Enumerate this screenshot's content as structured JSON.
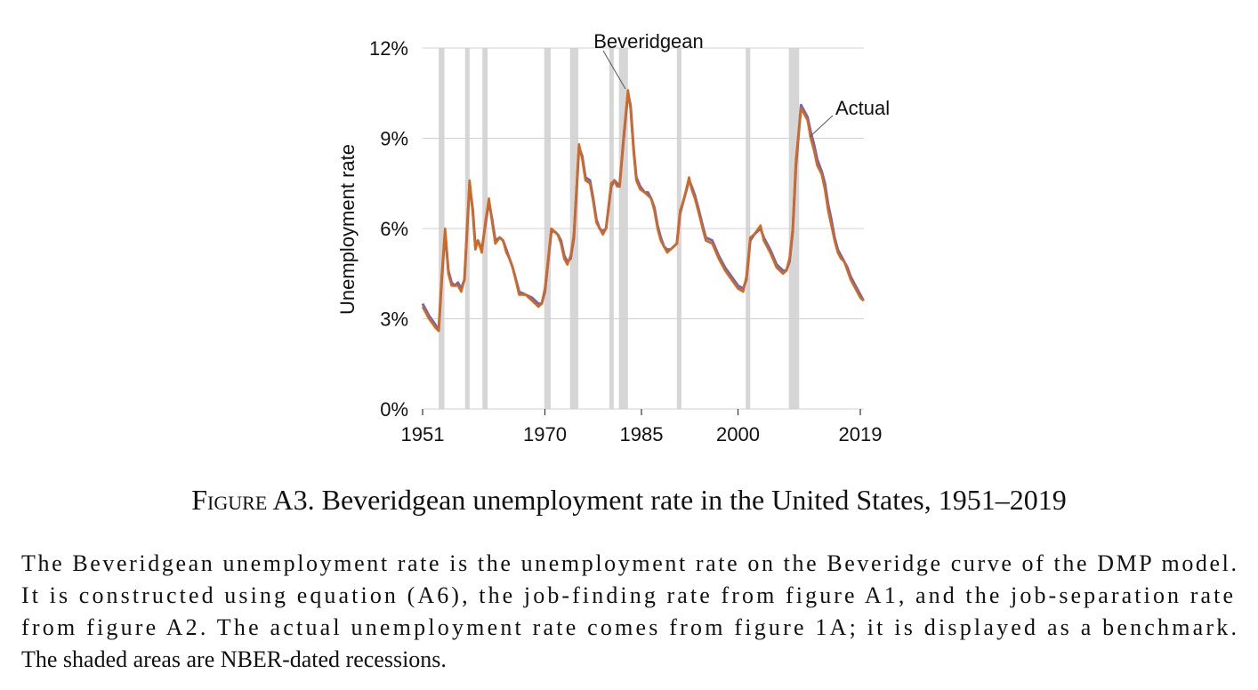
{
  "chart_data": {
    "type": "line",
    "y_label": "Unemployment rate",
    "x": [
      1951.0,
      1951.5,
      1952.0,
      1953.0,
      1953.5,
      1954.0,
      1954.5,
      1955.0,
      1955.5,
      1956.0,
      1956.5,
      1957.0,
      1957.5,
      1958.3,
      1958.8,
      1959.2,
      1959.6,
      1960.2,
      1960.8,
      1961.3,
      1961.8,
      1962.3,
      1963.0,
      1963.5,
      1964.0,
      1964.5,
      1965.0,
      1966.0,
      1967.0,
      1968.0,
      1969.0,
      1969.5,
      1970.0,
      1970.5,
      1971.0,
      1971.5,
      1972.0,
      1972.5,
      1973.0,
      1973.5,
      1974.0,
      1974.5,
      1975.3,
      1975.8,
      1976.3,
      1977.0,
      1977.5,
      1978.0,
      1978.5,
      1979.0,
      1979.5,
      1980.3,
      1980.8,
      1981.2,
      1981.6,
      1982.2,
      1982.9,
      1983.3,
      1983.8,
      1984.2,
      1984.8,
      1985.5,
      1986.0,
      1986.5,
      1987.0,
      1987.5,
      1988.0,
      1988.5,
      1989.0,
      1989.5,
      1990.0,
      1990.5,
      1991.0,
      1991.5,
      1992.4,
      1992.8,
      1993.3,
      1993.8,
      1994.5,
      1995.0,
      1996.0,
      1997.0,
      1998.0,
      1999.0,
      2000.0,
      2000.8,
      2001.3,
      2001.9,
      2002.5,
      2003.5,
      2004.0,
      2005.0,
      2006.0,
      2007.0,
      2007.5,
      2008.0,
      2008.5,
      2009.0,
      2009.8,
      2010.3,
      2010.8,
      2011.3,
      2011.8,
      2012.3,
      2013.0,
      2013.5,
      2014.0,
      2014.5,
      2015.0,
      2015.5,
      2016.0,
      2016.5,
      2017.0,
      2017.5,
      2018.0,
      2018.5,
      2019.0,
      2019.5
    ],
    "series": [
      {
        "name": "Beveridgean",
        "color": "#7466b0",
        "values": [
          3.5,
          3.3,
          3.1,
          2.8,
          2.6,
          4.4,
          5.9,
          4.6,
          4.2,
          4.1,
          4.2,
          4.0,
          4.3,
          7.5,
          6.6,
          5.4,
          5.6,
          5.3,
          6.2,
          6.9,
          6.3,
          5.6,
          5.7,
          5.6,
          5.3,
          5.0,
          4.7,
          3.9,
          3.8,
          3.7,
          3.5,
          3.5,
          3.9,
          4.9,
          5.9,
          5.9,
          5.8,
          5.6,
          5.1,
          4.9,
          5.0,
          5.7,
          8.7,
          8.4,
          7.7,
          7.6,
          7.0,
          6.3,
          6.0,
          5.9,
          6.0,
          7.4,
          7.6,
          7.5,
          7.4,
          8.9,
          10.5,
          10.1,
          8.6,
          7.7,
          7.4,
          7.2,
          7.2,
          7.0,
          6.7,
          6.1,
          5.7,
          5.4,
          5.3,
          5.3,
          5.4,
          5.5,
          6.5,
          6.9,
          7.6,
          7.4,
          7.1,
          6.7,
          6.1,
          5.7,
          5.6,
          5.1,
          4.7,
          4.4,
          4.1,
          4.0,
          4.3,
          5.6,
          5.8,
          6.0,
          5.7,
          5.3,
          4.8,
          4.6,
          4.6,
          4.9,
          5.9,
          8.1,
          10.1,
          9.9,
          9.7,
          9.2,
          8.8,
          8.3,
          7.9,
          7.5,
          6.8,
          6.3,
          5.7,
          5.3,
          5.1,
          4.9,
          4.7,
          4.4,
          4.2,
          4.0,
          3.8,
          3.6
        ]
      },
      {
        "name": "Actual",
        "color": "#d2691e",
        "values": [
          3.4,
          3.2,
          3.0,
          2.7,
          2.6,
          4.5,
          6.0,
          4.5,
          4.1,
          4.1,
          4.1,
          3.9,
          4.3,
          7.6,
          6.5,
          5.3,
          5.6,
          5.2,
          6.3,
          7.0,
          6.2,
          5.5,
          5.7,
          5.6,
          5.2,
          5.0,
          4.7,
          3.8,
          3.8,
          3.6,
          3.4,
          3.5,
          4.0,
          5.0,
          6.0,
          5.9,
          5.8,
          5.5,
          5.0,
          4.8,
          5.1,
          5.8,
          8.8,
          8.3,
          7.6,
          7.5,
          6.9,
          6.2,
          6.0,
          5.8,
          6.0,
          7.5,
          7.6,
          7.4,
          7.4,
          9.0,
          10.6,
          10.0,
          8.5,
          7.6,
          7.3,
          7.2,
          7.1,
          7.0,
          6.6,
          6.0,
          5.6,
          5.4,
          5.2,
          5.3,
          5.4,
          5.5,
          6.6,
          6.9,
          7.7,
          7.3,
          7.0,
          6.6,
          6.0,
          5.6,
          5.5,
          5.0,
          4.6,
          4.3,
          4.0,
          3.9,
          4.4,
          5.7,
          5.8,
          6.1,
          5.6,
          5.2,
          4.7,
          4.5,
          4.6,
          5.0,
          6.0,
          8.3,
          10.0,
          9.8,
          9.6,
          9.0,
          8.6,
          8.1,
          7.8,
          7.3,
          6.6,
          6.1,
          5.6,
          5.2,
          5.0,
          4.9,
          4.6,
          4.3,
          4.1,
          3.9,
          3.7,
          3.6
        ]
      }
    ],
    "recessions": [
      [
        1953.5,
        1954.4
      ],
      [
        1957.6,
        1958.3
      ],
      [
        1960.3,
        1961.1
      ],
      [
        1969.9,
        1970.9
      ],
      [
        1973.9,
        1975.2
      ],
      [
        1980.0,
        1980.5
      ],
      [
        1981.5,
        1982.9
      ],
      [
        1990.5,
        1991.2
      ],
      [
        2001.2,
        2001.9
      ],
      [
        2007.9,
        2009.5
      ]
    ],
    "xlim": [
      1951,
      2019
    ],
    "xticks": [
      1951,
      1970,
      1985,
      2000,
      2019
    ],
    "ylim": [
      0,
      12
    ],
    "yticks": [
      {
        "value": 0,
        "label": "0%"
      },
      {
        "value": 3,
        "label": "3%"
      },
      {
        "value": 6,
        "label": "6%"
      },
      {
        "value": 9,
        "label": "9%"
      },
      {
        "value": 12,
        "label": "12%"
      }
    ],
    "grid": true,
    "caption_label": "Figure A3.",
    "caption_title": "Beveridgean unemployment rate in the United States, 1951–2019",
    "caption_lines": [
      "The Beveridgean unemployment rate is the unemployment rate on the Beveridge curve of the DMP model.",
      "It is constructed using equation (A6), the job-finding rate from figure A1, and the job-separation rate",
      "from figure A2. The actual unemployment rate comes from figure 1A; it is displayed as a benchmark.",
      "The shaded areas are NBER-dated recessions."
    ]
  }
}
